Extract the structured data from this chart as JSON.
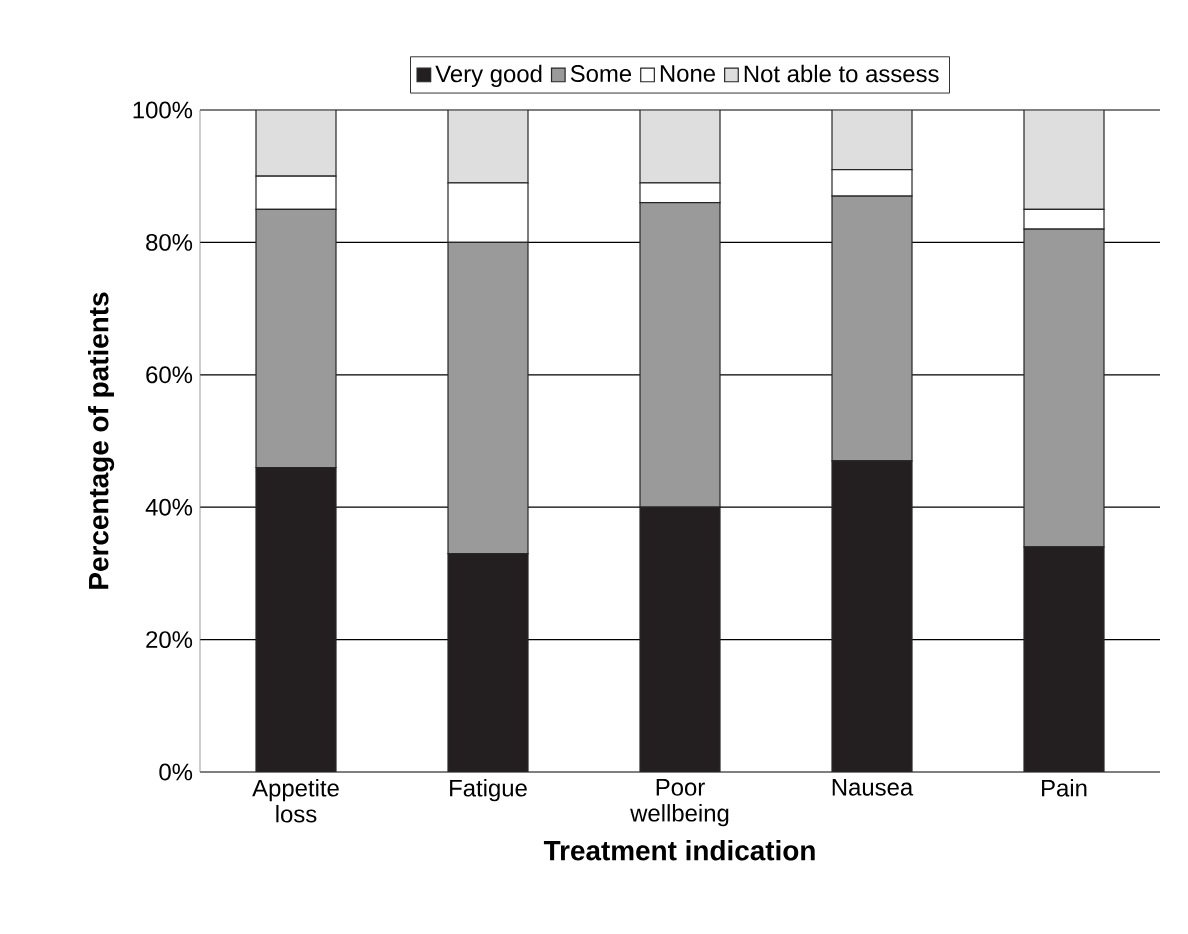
{
  "chart_data": {
    "type": "bar",
    "stacked": true,
    "xlabel": "Treatment indication",
    "ylabel": "Percentage of patients",
    "categories": [
      "Appetite loss",
      "Fatigue",
      "Poor wellbeing",
      "Nausea",
      "Pain"
    ],
    "series": [
      {
        "name": "Very good",
        "color": "#231f20",
        "values": [
          46,
          33,
          40,
          47,
          34
        ]
      },
      {
        "name": "Some",
        "color": "#9a9a9a",
        "values": [
          39,
          47,
          46,
          40,
          48
        ]
      },
      {
        "name": "None",
        "color": "#ffffff",
        "values": [
          5,
          9,
          3,
          4,
          3
        ]
      },
      {
        "name": "Not able to assess",
        "color": "#dedede",
        "values": [
          10,
          11,
          11,
          9,
          15
        ]
      }
    ],
    "ylim": [
      0,
      100
    ],
    "yticks": [
      {
        "value": 0,
        "label": "0%"
      },
      {
        "value": 20,
        "label": "20%"
      },
      {
        "value": 40,
        "label": "40%"
      },
      {
        "value": 60,
        "label": "60%"
      },
      {
        "value": 80,
        "label": "80%"
      },
      {
        "value": 100,
        "label": "100%"
      }
    ],
    "grid": "y",
    "legend": "top"
  }
}
